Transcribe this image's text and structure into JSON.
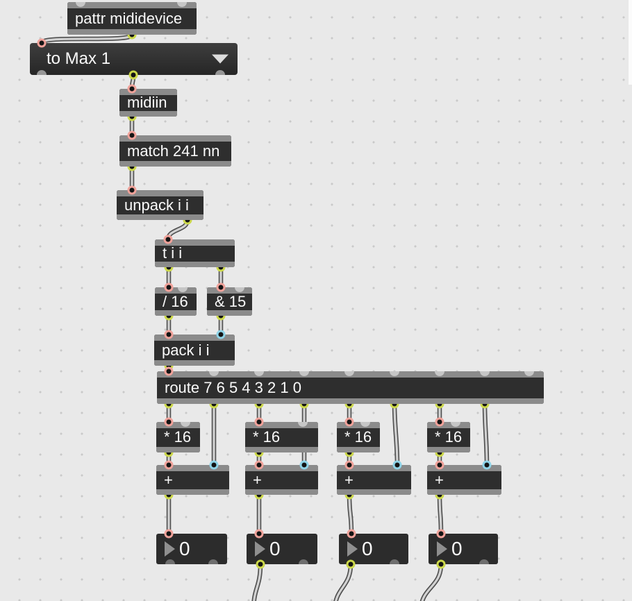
{
  "app": {
    "kind": "max-patcher"
  },
  "colors": {
    "background": "#e9e9e9",
    "grid_dot": "#c9c9c9",
    "box_body": "#2e2e2e",
    "box_bar": "#8b8b8b",
    "text": "#fafafa",
    "inlet_hot_ring": "#f0a29a",
    "inlet_cold_ring": "#8fd4e8",
    "outlet_ring": "#ccd84a",
    "cord_core": "#d2d2d2",
    "cord_edge": "#4f4f4f"
  },
  "objects": {
    "pattr": {
      "label": "pattr mididevice"
    },
    "umenu": {
      "label": "to Max 1"
    },
    "midiin": {
      "label": "midiin"
    },
    "match": {
      "label": "match 241 nn"
    },
    "unpack": {
      "label": "unpack i i"
    },
    "trigger": {
      "label": "t i i"
    },
    "divide": {
      "label": "/ 16"
    },
    "bitand": {
      "label": "& 15"
    },
    "pack": {
      "label": "pack i i"
    },
    "route": {
      "label": "route 7 6 5 4 3 2 1 0"
    },
    "mul1": {
      "label": "* 16"
    },
    "mul2": {
      "label": "* 16"
    },
    "mul3": {
      "label": "* 16"
    },
    "mul4": {
      "label": "* 16"
    },
    "add1": {
      "label": "+"
    },
    "add2": {
      "label": "+"
    },
    "add3": {
      "label": "+"
    },
    "add4": {
      "label": "+"
    },
    "num1": {
      "value": "0"
    },
    "num2": {
      "value": "0"
    },
    "num3": {
      "value": "0"
    },
    "num4": {
      "value": "0"
    }
  }
}
